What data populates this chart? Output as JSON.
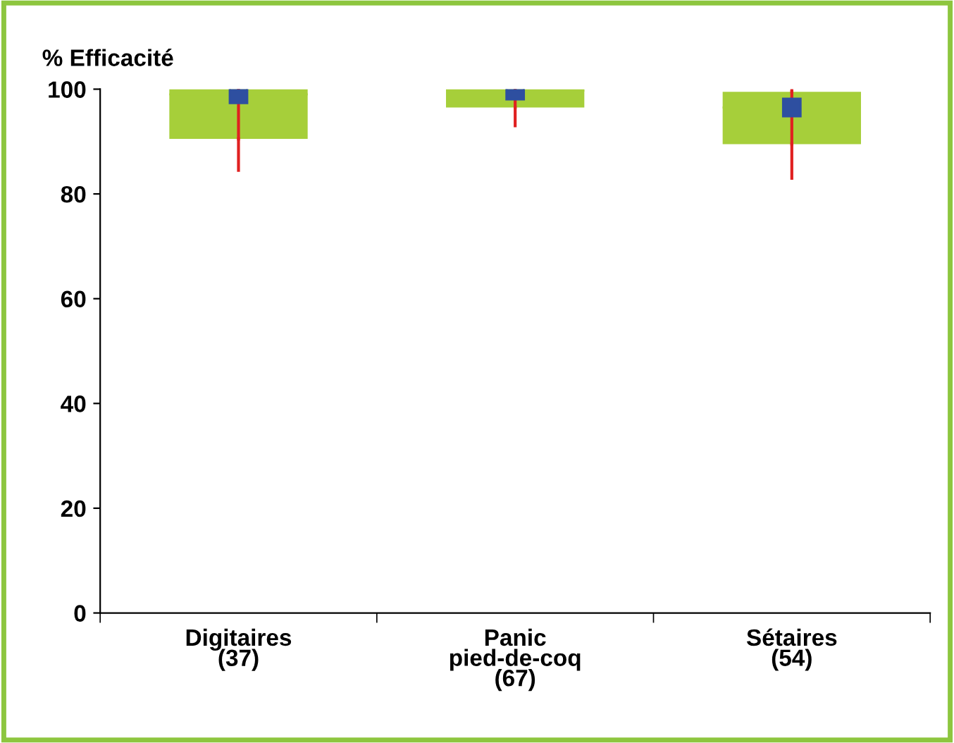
{
  "chart_data": {
    "type": "box",
    "ylabel": "% Efficacité",
    "categories": [
      "Digitaires\n(37)",
      "Panic\npied-de-coq\n(67)",
      "Sétaires\n(54)"
    ],
    "series": [
      {
        "color": "#a6cf3a",
        "boxes": [
          {
            "low": 84.5,
            "q1": 90.5,
            "median": 99,
            "q3": 100,
            "high": 100,
            "mean": 99
          },
          {
            "low": 93,
            "q1": 96.5,
            "median": 99.7,
            "q3": 100,
            "high": 100,
            "mean": 99.7
          },
          {
            "low": 83,
            "q1": 89.5,
            "median": 96.5,
            "q3": 99.5,
            "high": 100,
            "mean": 96.5
          }
        ]
      }
    ],
    "ylim": [
      0,
      100
    ],
    "yticks": [
      0,
      20,
      40,
      60,
      80,
      100
    ],
    "grid": false,
    "marker": "square"
  }
}
